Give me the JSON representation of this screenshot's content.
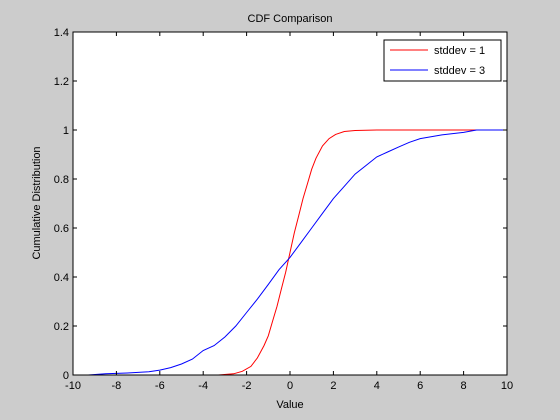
{
  "chart_data": {
    "type": "line",
    "title": "CDF Comparison",
    "xlabel": "Value",
    "ylabel": "Cumulative Distribution",
    "xlim": [
      -10,
      10
    ],
    "ylim": [
      0,
      1.4
    ],
    "xticks": [
      "-10",
      "-8",
      "-6",
      "-4",
      "-2",
      "0",
      "2",
      "4",
      "6",
      "8",
      "10"
    ],
    "yticks": [
      "0",
      "0.2",
      "0.4",
      "0.6",
      "0.8",
      "1",
      "1.2",
      "1.4"
    ],
    "grid": false,
    "legend_position": "top-right",
    "background_color": "#cccccc",
    "plot_background": "#ffffff",
    "series": [
      {
        "name": "stddev = 1",
        "color": "#ff0000",
        "points": [
          [
            -3.3,
            0.0
          ],
          [
            -2.6,
            0.005
          ],
          [
            -2.2,
            0.015
          ],
          [
            -1.8,
            0.035
          ],
          [
            -1.5,
            0.07
          ],
          [
            -1.2,
            0.12
          ],
          [
            -1.0,
            0.16
          ],
          [
            -0.8,
            0.22
          ],
          [
            -0.6,
            0.28
          ],
          [
            -0.4,
            0.35
          ],
          [
            -0.2,
            0.42
          ],
          [
            0.0,
            0.5
          ],
          [
            0.2,
            0.58
          ],
          [
            0.4,
            0.65
          ],
          [
            0.6,
            0.72
          ],
          [
            0.8,
            0.78
          ],
          [
            1.0,
            0.84
          ],
          [
            1.2,
            0.885
          ],
          [
            1.5,
            0.935
          ],
          [
            1.8,
            0.965
          ],
          [
            2.1,
            0.982
          ],
          [
            2.5,
            0.994
          ],
          [
            3.0,
            0.998
          ],
          [
            4.0,
            1.0
          ],
          [
            10.0,
            1.0
          ]
        ]
      },
      {
        "name": "stddev = 3",
        "color": "#0000ff",
        "points": [
          [
            -9.3,
            0.0
          ],
          [
            -8.5,
            0.005
          ],
          [
            -7.5,
            0.008
          ],
          [
            -6.5,
            0.013
          ],
          [
            -6.0,
            0.02
          ],
          [
            -5.5,
            0.03
          ],
          [
            -5.0,
            0.045
          ],
          [
            -4.5,
            0.065
          ],
          [
            -4.0,
            0.1
          ],
          [
            -3.5,
            0.12
          ],
          [
            -3.0,
            0.155
          ],
          [
            -2.5,
            0.2
          ],
          [
            -2.0,
            0.255
          ],
          [
            -1.5,
            0.31
          ],
          [
            -1.0,
            0.37
          ],
          [
            -0.5,
            0.43
          ],
          [
            0.0,
            0.48
          ],
          [
            0.5,
            0.54
          ],
          [
            1.0,
            0.6
          ],
          [
            1.5,
            0.66
          ],
          [
            2.0,
            0.72
          ],
          [
            2.5,
            0.77
          ],
          [
            3.0,
            0.82
          ],
          [
            3.5,
            0.855
          ],
          [
            4.0,
            0.89
          ],
          [
            4.5,
            0.91
          ],
          [
            5.0,
            0.93
          ],
          [
            5.5,
            0.95
          ],
          [
            6.0,
            0.965
          ],
          [
            7.0,
            0.98
          ],
          [
            8.0,
            0.99
          ],
          [
            8.6,
            1.0
          ],
          [
            10.0,
            1.0
          ]
        ]
      }
    ]
  }
}
